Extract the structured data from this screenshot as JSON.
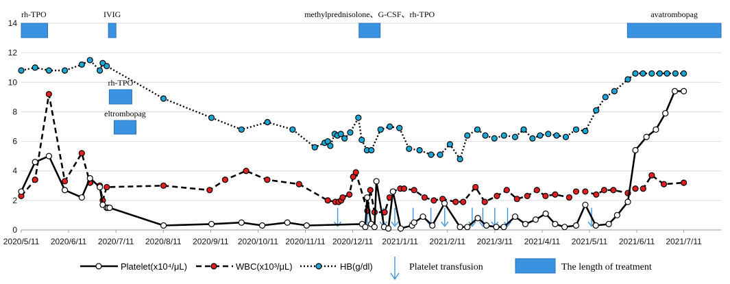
{
  "chart_data": {
    "type": "line",
    "x_ticks": [
      "2020/5/11",
      "2020/6/11",
      "2020/7/11",
      "2020/8/11",
      "2020/9/11",
      "2020/10/11",
      "2020/11/11",
      "2020/12/11",
      "2021/1/11",
      "2021/2/11",
      "2021/3/11",
      "2021/4/11",
      "2021/5/11",
      "2021/6/11",
      "2021/7/11"
    ],
    "ylim": [
      0,
      14
    ],
    "y_ticks": [
      0,
      2,
      4,
      6,
      8,
      10,
      12,
      14
    ],
    "grid": true,
    "series": [
      {
        "name": "Platelet(x10⁴/μL)",
        "style": "solid",
        "marker": "open-circle",
        "marker_fill": "#ffffff",
        "color": "#000000",
        "x": [
          0,
          0.66,
          1.32,
          2.08,
          2.89,
          3.28,
          3.75,
          3.89,
          4.08,
          4.14,
          4.22,
          6.79,
          9.08,
          10.51,
          11.5,
          12.7,
          13.62,
          16.27,
          16.42,
          16.51,
          16.7,
          16.86,
          16.95,
          17.32,
          17.52,
          17.74,
          18.11,
          18.65,
          18.75,
          19.17,
          19.62,
          20.2,
          20.94,
          21.29,
          21.79,
          22.2,
          22.67,
          23.03,
          23.57,
          24.06,
          24.55,
          25.03,
          25.48,
          25.93,
          26.48,
          26.92,
          27.42,
          28.04,
          28.44,
          28.95,
          29.31,
          29.84,
          30.29,
          30.74,
          31.19,
          31.62
        ],
        "values": [
          2.6,
          4.6,
          5.0,
          2.7,
          2.2,
          3.5,
          2.9,
          1.7,
          1.5,
          1.5,
          1.5,
          0.3,
          0.4,
          0.5,
          0.3,
          0.5,
          0.3,
          0.4,
          0.2,
          2.2,
          0.4,
          0.2,
          3.3,
          0.2,
          0.1,
          2.6,
          0.1,
          0.3,
          0.5,
          0.9,
          0.3,
          1.8,
          0.2,
          0.2,
          0.8,
          0.3,
          0.2,
          0.2,
          0.9,
          0.4,
          0.7,
          1.1,
          0.4,
          0.2,
          0.3,
          1.7,
          0.3,
          0.4,
          1.0,
          1.9,
          5.4,
          6.3,
          6.8,
          7.9,
          9.4,
          9.4
        ]
      },
      {
        "name": "WBC(x10³/μL)",
        "style": "dashed",
        "marker": "circle",
        "marker_fill": "#e02020",
        "color": "#000000",
        "x": [
          0,
          0.66,
          1.32,
          2.08,
          2.89,
          3.28,
          3.75,
          3.89,
          4.08,
          6.79,
          8.99,
          9.73,
          10.73,
          11.74,
          13.26,
          14.63,
          14.99,
          15.15,
          15.27,
          15.34,
          15.66,
          15.84,
          15.97,
          16.52,
          16.66,
          16.86,
          17.34,
          17.58,
          17.74,
          18.09,
          18.27,
          18.75,
          19.25,
          19.69,
          20.11,
          20.73,
          21.09,
          21.68,
          22.12,
          22.7,
          23.17,
          23.66,
          24.15,
          24.61,
          25.02,
          25.48,
          26.15,
          26.48,
          26.92,
          27.44,
          27.82,
          28.26,
          28.95,
          29.31,
          29.68,
          30.09,
          30.67,
          31.62
        ],
        "values": [
          2.3,
          3.4,
          9.2,
          3.3,
          5.2,
          3.2,
          3.0,
          2.0,
          2.9,
          3.0,
          2.7,
          3.4,
          4.0,
          3.4,
          3.1,
          2.0,
          1.9,
          1.9,
          2.0,
          2.2,
          2.4,
          3.6,
          3.9,
          1.3,
          2.7,
          1.2,
          1.2,
          2.2,
          2.6,
          2.8,
          2.8,
          2.7,
          2.2,
          2.0,
          2.1,
          1.9,
          1.9,
          2.9,
          1.9,
          2.3,
          2.7,
          2.1,
          2.3,
          2.7,
          2.3,
          2.4,
          2.2,
          2.6,
          2.6,
          2.4,
          2.7,
          2.7,
          2.5,
          2.8,
          2.8,
          3.7,
          3.1,
          3.2
        ]
      },
      {
        "name": "HB(g/dl)",
        "style": "dotted",
        "marker": "circle",
        "marker_fill": "#1aa7d6",
        "color": "#000000",
        "x": [
          0,
          0.66,
          1.32,
          2.08,
          2.89,
          3.28,
          3.75,
          3.89,
          4.08,
          6.79,
          9.08,
          10.51,
          11.75,
          12.95,
          14.01,
          14.48,
          14.63,
          14.75,
          14.96,
          15.09,
          15.25,
          15.43,
          15.7,
          16.09,
          16.25,
          16.5,
          16.71,
          17.15,
          17.59,
          18.05,
          18.51,
          19.01,
          19.56,
          19.99,
          20.46,
          20.94,
          21.29,
          21.77,
          22.15,
          22.58,
          23.04,
          23.57,
          23.98,
          24.4,
          24.76,
          25.15,
          25.55,
          25.99,
          26.48,
          26.92,
          27.44,
          27.88,
          28.31,
          28.95,
          29.31,
          29.67,
          30.09,
          30.47,
          30.82,
          31.22,
          31.62
        ],
        "values": [
          10.8,
          11.0,
          10.8,
          10.8,
          11.2,
          11.5,
          10.8,
          11.3,
          11.1,
          8.9,
          7.6,
          6.8,
          7.3,
          6.8,
          5.6,
          5.9,
          6.0,
          5.7,
          6.5,
          6.4,
          6.5,
          6.2,
          6.6,
          7.6,
          6.1,
          5.4,
          5.4,
          6.8,
          7.0,
          6.9,
          5.5,
          5.4,
          5.1,
          5.1,
          5.8,
          4.8,
          6.4,
          6.8,
          6.4,
          6.2,
          6.4,
          6.3,
          6.8,
          6.2,
          6.4,
          6.5,
          6.4,
          6.3,
          6.8,
          6.7,
          8.1,
          9.0,
          9.4,
          10.2,
          10.6,
          10.6,
          10.6,
          10.6,
          10.6,
          10.6,
          10.6
        ]
      }
    ],
    "treatments": [
      {
        "label": "rh-TPO",
        "start": 0,
        "end": 1.26,
        "level": "top"
      },
      {
        "label": "IVIG",
        "start": 4.16,
        "end": 4.52,
        "level": "top"
      },
      {
        "label": "methylprednisolone、G-CSF、rh-TPO",
        "start": 16.12,
        "end": 17.13,
        "level": "top"
      },
      {
        "label": "avatrombopag",
        "start": 28.93,
        "end": 33.4,
        "level": "top"
      },
      {
        "label": "rh-TPO",
        "start": 4.2,
        "end": 5.28,
        "level": "middle"
      },
      {
        "label": "eltrombopag",
        "start": 4.43,
        "end": 5.48,
        "level": "lower"
      }
    ],
    "platelet_transfusions": [
      15.1,
      16.52,
      17.28,
      17.83,
      18.7,
      19.55,
      20.21,
      21.52,
      22.03,
      22.6,
      23.21,
      27.22
    ],
    "legend": {
      "platelet": "Platelet(x10⁴/μL)",
      "wbc": "WBC(x10³/μL)",
      "hb": "HB(g/dl)",
      "transfusion": "Platelet transfusion",
      "treatment": "The length of treatment"
    },
    "title": "",
    "xlabel": "",
    "ylabel": ""
  },
  "colors": {
    "treatment_fill": "#3a93e0",
    "arrow": "#3a93e0",
    "grid": "#d9d9d9"
  }
}
